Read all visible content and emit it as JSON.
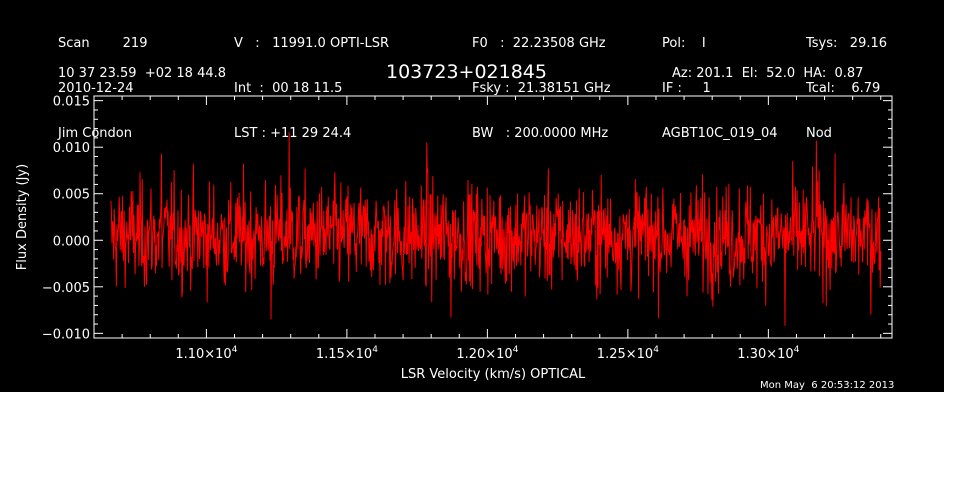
{
  "header": {
    "col1": [
      "Scan        219",
      "2010-12-24",
      "Jim Condon"
    ],
    "col2": [
      "V   :   11991.0 OPTI-LSR",
      "Int  :  00 18 11.5",
      "LST : +11 29 24.4"
    ],
    "col3": [
      "F0   :  22.23508 GHz",
      "Fsky :  21.38151 GHz",
      "BW   : 200.0000 MHz"
    ],
    "col4": [
      "Pol:    I",
      "IF :     1",
      "AGBT10C_019_04"
    ],
    "col5": [
      "Tsys:   29.16",
      "Tcal:    6.79",
      "Nod"
    ],
    "coords": "10 37 23.59  +02 18 44.8",
    "source": "103723+021845",
    "pointing": "Az: 201.1  El:  52.0  HA:  0.87"
  },
  "timestamp": "Mon May  6 20:53:12 2013",
  "chart_data": {
    "type": "line",
    "title": "103723+021845",
    "xlabel": "LSR Velocity (km/s) OPTICAL",
    "ylabel": "Flux Density (Jy)",
    "xlim": [
      10600,
      13440
    ],
    "ylim": [
      -0.0105,
      0.0155
    ],
    "xticks": [
      11000,
      11500,
      12000,
      12500,
      13000
    ],
    "xtick_labels": [
      {
        "mantissa": "1.10×10",
        "exp": "4"
      },
      {
        "mantissa": "1.15×10",
        "exp": "4"
      },
      {
        "mantissa": "1.20×10",
        "exp": "4"
      },
      {
        "mantissa": "1.25×10",
        "exp": "4"
      },
      {
        "mantissa": "1.30×10",
        "exp": "4"
      }
    ],
    "yticks": [
      -0.01,
      -0.005,
      0.0,
      0.005,
      0.01,
      0.015
    ],
    "ytick_labels": [
      "−0.010",
      "−0.005",
      "0.000",
      "0.005",
      "0.010",
      "0.015"
    ],
    "series": [
      {
        "color": "#ff0000",
        "x_range": [
          10660,
          13400
        ],
        "n_points": 1400,
        "mean": 0.0005,
        "rms": 0.0028,
        "spikes": [
          {
            "x": 10840,
            "y": 0.0093
          },
          {
            "x": 11295,
            "y": 0.0116
          },
          {
            "x": 11785,
            "y": 0.0105
          },
          {
            "x": 13170,
            "y": 0.0107
          },
          {
            "x": 13060,
            "y": -0.0092
          },
          {
            "x": 11230,
            "y": -0.0085
          },
          {
            "x": 11870,
            "y": -0.0083
          }
        ]
      }
    ]
  },
  "colors": {
    "background": "#000000",
    "foreground": "#ffffff",
    "trace": "#ff0000"
  }
}
